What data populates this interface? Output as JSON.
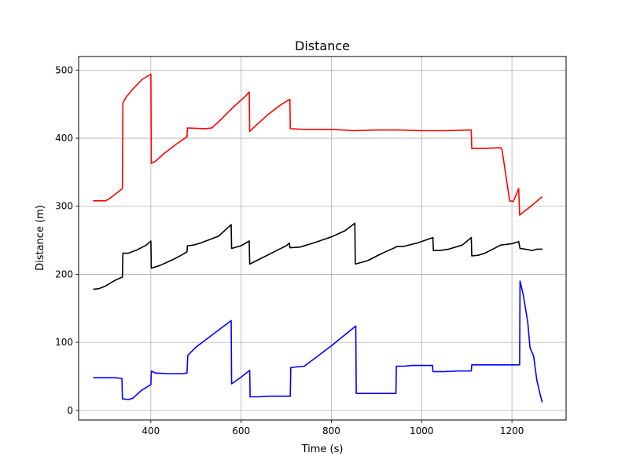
{
  "chart_data": {
    "type": "line",
    "title": "Distance",
    "xlabel": "Time (s)",
    "ylabel": "Distance (m)",
    "xlim": [
      240,
      1320
    ],
    "ylim": [
      -14,
      520
    ],
    "xticks": [
      400,
      600,
      800,
      1000,
      1200
    ],
    "yticks": [
      0,
      100,
      200,
      300,
      400,
      500
    ],
    "grid": true,
    "series": [
      {
        "color": "#ff0000",
        "points": [
          [
            272,
            308
          ],
          [
            300,
            308
          ],
          [
            310,
            312
          ],
          [
            337,
            326
          ],
          [
            338,
            452
          ],
          [
            345,
            460
          ],
          [
            360,
            472
          ],
          [
            380,
            486
          ],
          [
            400,
            494
          ],
          [
            401,
            363
          ],
          [
            410,
            366
          ],
          [
            430,
            378
          ],
          [
            460,
            393
          ],
          [
            480,
            402
          ],
          [
            481,
            415
          ],
          [
            520,
            414
          ],
          [
            535,
            415
          ],
          [
            550,
            424
          ],
          [
            580,
            444
          ],
          [
            610,
            462
          ],
          [
            618,
            468
          ],
          [
            619,
            410
          ],
          [
            630,
            417
          ],
          [
            660,
            435
          ],
          [
            690,
            450
          ],
          [
            708,
            457
          ],
          [
            709,
            414
          ],
          [
            740,
            413
          ],
          [
            800,
            413
          ],
          [
            850,
            411
          ],
          [
            900,
            412
          ],
          [
            950,
            412
          ],
          [
            1000,
            411
          ],
          [
            1050,
            411
          ],
          [
            1110,
            412
          ],
          [
            1111,
            385
          ],
          [
            1140,
            385
          ],
          [
            1175,
            386
          ],
          [
            1178,
            383
          ],
          [
            1190,
            330
          ],
          [
            1195,
            308
          ],
          [
            1203,
            307
          ],
          [
            1210,
            318
          ],
          [
            1215,
            326
          ],
          [
            1217,
            287
          ],
          [
            1240,
            299
          ],
          [
            1267,
            314
          ]
        ]
      },
      {
        "color": "#000000",
        "points": [
          [
            272,
            178
          ],
          [
            285,
            179
          ],
          [
            300,
            183
          ],
          [
            320,
            191
          ],
          [
            337,
            196
          ],
          [
            338,
            231
          ],
          [
            350,
            231
          ],
          [
            370,
            236
          ],
          [
            390,
            243
          ],
          [
            400,
            249
          ],
          [
            401,
            209
          ],
          [
            420,
            213
          ],
          [
            450,
            222
          ],
          [
            470,
            229
          ],
          [
            480,
            233
          ],
          [
            481,
            242
          ],
          [
            495,
            243
          ],
          [
            510,
            246
          ],
          [
            550,
            256
          ],
          [
            578,
            273
          ],
          [
            579,
            238
          ],
          [
            600,
            242
          ],
          [
            618,
            249
          ],
          [
            619,
            215
          ],
          [
            640,
            222
          ],
          [
            670,
            232
          ],
          [
            700,
            242
          ],
          [
            707,
            246
          ],
          [
            708,
            239
          ],
          [
            730,
            240
          ],
          [
            760,
            246
          ],
          [
            800,
            255
          ],
          [
            830,
            264
          ],
          [
            852,
            275
          ],
          [
            853,
            215
          ],
          [
            880,
            220
          ],
          [
            910,
            230
          ],
          [
            930,
            236
          ],
          [
            940,
            239
          ],
          [
            945,
            241
          ],
          [
            960,
            241
          ],
          [
            990,
            246
          ],
          [
            1025,
            254
          ],
          [
            1026,
            235
          ],
          [
            1040,
            235
          ],
          [
            1060,
            237
          ],
          [
            1090,
            243
          ],
          [
            1110,
            254
          ],
          [
            1111,
            227
          ],
          [
            1125,
            228
          ],
          [
            1140,
            231
          ],
          [
            1175,
            243
          ],
          [
            1200,
            245
          ],
          [
            1210,
            247
          ],
          [
            1215,
            248
          ],
          [
            1218,
            238
          ],
          [
            1230,
            237
          ],
          [
            1245,
            235
          ],
          [
            1255,
            237
          ],
          [
            1268,
            237
          ]
        ]
      },
      {
        "color": "#0000ff",
        "points": [
          [
            272,
            48
          ],
          [
            300,
            48
          ],
          [
            320,
            48
          ],
          [
            336,
            47
          ],
          [
            337,
            17
          ],
          [
            350,
            16
          ],
          [
            360,
            18
          ],
          [
            380,
            30
          ],
          [
            400,
            38
          ],
          [
            401,
            58
          ],
          [
            410,
            55
          ],
          [
            440,
            54
          ],
          [
            470,
            54
          ],
          [
            480,
            55
          ],
          [
            482,
            81
          ],
          [
            500,
            93
          ],
          [
            540,
            113
          ],
          [
            578,
            132
          ],
          [
            579,
            39
          ],
          [
            600,
            49
          ],
          [
            619,
            59
          ],
          [
            620,
            20
          ],
          [
            640,
            20
          ],
          [
            660,
            21
          ],
          [
            680,
            21
          ],
          [
            700,
            21
          ],
          [
            709,
            21
          ],
          [
            710,
            63
          ],
          [
            740,
            65
          ],
          [
            800,
            95
          ],
          [
            854,
            124
          ],
          [
            855,
            25
          ],
          [
            880,
            25
          ],
          [
            900,
            25
          ],
          [
            930,
            25
          ],
          [
            943,
            25
          ],
          [
            944,
            65
          ],
          [
            960,
            65
          ],
          [
            980,
            66
          ],
          [
            1010,
            66
          ],
          [
            1024,
            66
          ],
          [
            1025,
            57
          ],
          [
            1050,
            57
          ],
          [
            1080,
            58
          ],
          [
            1110,
            58
          ],
          [
            1111,
            67
          ],
          [
            1140,
            67
          ],
          [
            1180,
            67
          ],
          [
            1215,
            67
          ],
          [
            1217,
            67
          ],
          [
            1218,
            190
          ],
          [
            1225,
            170
          ],
          [
            1235,
            130
          ],
          [
            1240,
            92
          ],
          [
            1248,
            80
          ],
          [
            1255,
            45
          ],
          [
            1262,
            25
          ],
          [
            1267,
            12
          ]
        ]
      }
    ]
  }
}
